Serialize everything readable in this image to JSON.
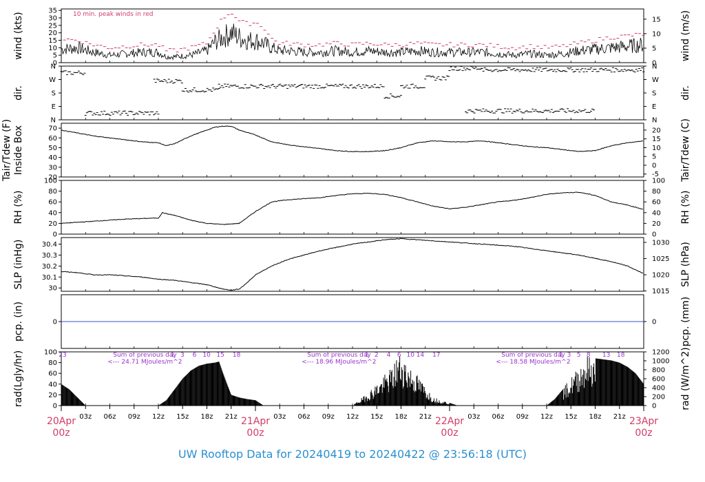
{
  "title": "UW Rooftop Data for 20240419  to  20240422 @ 23:56:18  (UTC)",
  "colors": {
    "axis": "#000000",
    "data": "#000000",
    "peak": "#d33a66",
    "precip": "#3355cc",
    "solar_label": "#9933cc",
    "date_label": "#d33a66",
    "title": "#2a8fd0"
  },
  "time_axis": {
    "range_hours": [
      0,
      72
    ],
    "tick_labels": [
      "03z",
      "06z",
      "09z",
      "12z",
      "15z",
      "18z",
      "21z",
      "03z",
      "06z",
      "09z",
      "12z",
      "15z",
      "18z",
      "21z",
      "03z",
      "06z",
      "09z",
      "12z",
      "15z",
      "18z",
      "21z"
    ],
    "tick_hours": [
      3,
      6,
      9,
      12,
      15,
      18,
      21,
      27,
      30,
      33,
      36,
      39,
      42,
      45,
      51,
      54,
      57,
      60,
      63,
      66,
      69
    ],
    "date_labels": [
      {
        "hour": 0,
        "date": "20Apr",
        "time": "00z"
      },
      {
        "hour": 24,
        "date": "21Apr",
        "time": "00z"
      },
      {
        "hour": 48,
        "date": "22Apr",
        "time": "00z"
      },
      {
        "hour": 72,
        "date": "23Apr",
        "time": "00z"
      }
    ]
  },
  "chart_data": [
    {
      "type": "line",
      "id": "wind",
      "ylabel_left": "wind (kts)",
      "ylabel_right": "wind (m/s)",
      "ylim": [
        0,
        36
      ],
      "left_ticks": [
        0,
        5,
        10,
        15,
        20,
        25,
        30,
        35
      ],
      "right_ticks": [
        0,
        5,
        10,
        15
      ],
      "right_scale": 0.5144,
      "annotation": "10 min. peak winds in red",
      "x": [
        0,
        2,
        4,
        6,
        8,
        10,
        12,
        13,
        14,
        16,
        18,
        19,
        20,
        21,
        22,
        23,
        24,
        25,
        26,
        27,
        28,
        30,
        32,
        34,
        36,
        38,
        40,
        42,
        44,
        46,
        48,
        50,
        52,
        54,
        56,
        58,
        60,
        62,
        64,
        66,
        68,
        70,
        72
      ],
      "values": [
        9,
        10,
        7,
        5,
        6,
        7,
        7,
        4,
        4,
        5,
        8,
        14,
        17,
        20,
        17,
        15,
        15,
        13,
        10,
        8,
        8,
        7,
        7,
        8,
        7,
        8,
        7,
        7,
        8,
        7,
        7,
        7,
        7,
        6,
        5,
        6,
        5,
        6,
        8,
        9,
        10,
        11,
        12
      ],
      "peak_values": [
        16,
        15,
        12,
        10,
        11,
        12,
        12,
        8,
        8,
        10,
        13,
        22,
        30,
        34,
        28,
        26,
        27,
        24,
        16,
        13,
        13,
        12,
        12,
        13,
        12,
        13,
        12,
        12,
        13,
        12,
        12,
        12,
        12,
        11,
        10,
        11,
        10,
        11,
        13,
        15,
        17,
        18,
        19
      ]
    },
    {
      "type": "scatter",
      "id": "dir",
      "ylabel_left": "dir.",
      "ylabel_right": "dir.",
      "y_tick_labels": [
        "N",
        "E",
        "S",
        "W",
        "N"
      ],
      "y_tick_degrees": [
        0,
        90,
        180,
        270,
        360
      ],
      "ylim": [
        0,
        360
      ],
      "segments": [
        {
          "x": [
            0,
            3
          ],
          "deg": 315
        },
        {
          "x": [
            3,
            12
          ],
          "deg": 45
        },
        {
          "x": [
            11.5,
            15
          ],
          "deg": 260
        },
        {
          "x": [
            15,
            19.5
          ],
          "deg": 200
        },
        {
          "x": [
            19.5,
            40
          ],
          "deg": 225
        },
        {
          "x": [
            40,
            42
          ],
          "deg": 160
        },
        {
          "x": [
            42,
            45
          ],
          "deg": 225
        },
        {
          "x": [
            45,
            48
          ],
          "deg": 280
        },
        {
          "x": [
            48,
            52
          ],
          "deg": 345
        },
        {
          "x": [
            50,
            66
          ],
          "deg": 60
        },
        {
          "x": [
            52,
            72
          ],
          "deg": 335
        }
      ]
    },
    {
      "type": "line",
      "id": "temp",
      "ylabel_left": "Tair/Tdew (F)",
      "ylabel_left2": "Inside Box",
      "ylabel_right": "Tair/Tdew (C)",
      "ylim": [
        20,
        75
      ],
      "left_ticks": [
        20,
        30,
        40,
        50,
        60,
        70
      ],
      "right_ticks": [
        -5,
        0,
        5,
        10,
        15,
        20
      ],
      "x": [
        0,
        2,
        4,
        6,
        8,
        10,
        12,
        13,
        14,
        16,
        18,
        19,
        20,
        21,
        22,
        24,
        26,
        28,
        30,
        32,
        34,
        36,
        38,
        40,
        42,
        44,
        46,
        48,
        50,
        52,
        54,
        56,
        58,
        60,
        62,
        64,
        66,
        68,
        70,
        72
      ],
      "values": [
        68,
        65,
        62,
        60,
        58,
        56,
        55,
        52,
        54,
        62,
        68,
        71,
        72,
        72,
        68,
        63,
        56,
        53,
        51,
        49,
        47,
        46,
        46,
        47,
        50,
        55,
        57,
        56,
        56,
        57,
        55,
        53,
        51,
        50,
        48,
        46,
        47,
        52,
        55,
        57
      ]
    },
    {
      "type": "line",
      "id": "rh",
      "ylabel_left": "RH (%)",
      "ylabel_right": "RH (%)",
      "ylim": [
        0,
        100
      ],
      "left_ticks": [
        0,
        20,
        40,
        60,
        80,
        100
      ],
      "right_ticks": [
        0,
        20,
        40,
        60,
        80,
        100
      ],
      "x": [
        0,
        2,
        4,
        6,
        8,
        10,
        12,
        12.5,
        13,
        14,
        16,
        18,
        20,
        22,
        24,
        26,
        28,
        30,
        32,
        34,
        36,
        38,
        40,
        42,
        44,
        46,
        48,
        50,
        52,
        54,
        56,
        58,
        60,
        62,
        64,
        66,
        68,
        70,
        72
      ],
      "values": [
        20,
        22,
        24,
        26,
        28,
        29,
        30,
        40,
        38,
        35,
        26,
        20,
        18,
        20,
        42,
        60,
        64,
        66,
        68,
        72,
        75,
        76,
        74,
        68,
        60,
        52,
        47,
        50,
        55,
        60,
        63,
        68,
        74,
        77,
        78,
        72,
        60,
        54,
        46
      ]
    },
    {
      "type": "line",
      "id": "slp",
      "ylabel_left": "SLP (inHg)",
      "ylabel_right": "SLP (hPa)",
      "ylim": [
        29.97,
        30.46
      ],
      "left_ticks": [
        30.0,
        30.1,
        30.2,
        30.3,
        30.4
      ],
      "right_ticks": [
        1015,
        1020,
        1025,
        1030
      ],
      "x": [
        0,
        2,
        4,
        6,
        8,
        10,
        12,
        14,
        16,
        18,
        20,
        21,
        22,
        23,
        24,
        26,
        28,
        30,
        32,
        34,
        36,
        38,
        40,
        42,
        44,
        46,
        48,
        50,
        52,
        54,
        56,
        58,
        60,
        62,
        64,
        66,
        68,
        70,
        72
      ],
      "values": [
        30.15,
        30.14,
        30.12,
        30.12,
        30.11,
        30.1,
        30.08,
        30.07,
        30.05,
        30.03,
        29.99,
        29.98,
        29.99,
        30.05,
        30.12,
        30.2,
        30.26,
        30.3,
        30.34,
        30.37,
        30.4,
        30.42,
        30.44,
        30.45,
        30.44,
        30.43,
        30.42,
        30.41,
        30.4,
        30.39,
        30.38,
        30.36,
        30.34,
        30.32,
        30.3,
        30.27,
        30.24,
        30.2,
        30.13
      ]
    },
    {
      "type": "line",
      "id": "pcp",
      "ylabel_left": "pcp. (in)",
      "ylabel_right": "pcp. (mm)",
      "ylim": [
        -1,
        1
      ],
      "left_ticks": [
        0
      ],
      "right_ticks": [
        0
      ],
      "x": [
        0,
        72
      ],
      "values": [
        0,
        0
      ]
    },
    {
      "type": "area",
      "id": "rad",
      "ylabel_left": "rad(Lgly/hr)",
      "ylabel_right": "rad (W/m^2)",
      "ylim": [
        0,
        100
      ],
      "left_ticks": [
        0,
        20,
        40,
        60,
        80,
        100
      ],
      "right_ticks": [
        0,
        200,
        400,
        600,
        800,
        1000,
        1200
      ],
      "x": [
        0,
        1,
        2,
        3,
        12,
        13,
        14,
        15,
        16,
        17,
        18,
        19,
        19.5,
        20,
        20.5,
        21,
        22,
        23,
        24,
        25,
        36,
        37,
        38,
        39,
        40,
        41,
        41.5,
        42,
        42.5,
        43,
        44,
        45,
        46,
        48,
        49,
        60,
        61,
        62,
        63,
        64,
        64.5,
        65,
        66,
        67,
        68,
        69,
        70,
        71,
        72
      ],
      "values": [
        40,
        30,
        15,
        0,
        0,
        10,
        30,
        50,
        65,
        74,
        78,
        80,
        82,
        60,
        40,
        20,
        15,
        12,
        10,
        0,
        0,
        12,
        25,
        40,
        55,
        70,
        90,
        95,
        85,
        72,
        55,
        35,
        15,
        5,
        0,
        0,
        12,
        30,
        50,
        70,
        85,
        90,
        88,
        86,
        84,
        80,
        72,
        60,
        40
      ],
      "daily_sums": [
        {
          "hour": 3,
          "line1": "Sum of previous day",
          "line2": "<--- 24.71 MJoules/m^2"
        },
        {
          "hour": 27,
          "line1": "Sum of previous day",
          "line2": "<--- 18.96 MJoules/m^2"
        },
        {
          "hour": 51,
          "line1": "Sum of previous day",
          "line2": "<--- 18.58 MJoules/m^2"
        }
      ],
      "hour_labels": [
        {
          "hour": 0,
          "text": "23"
        },
        {
          "hour": 13.6,
          "text": "1"
        },
        {
          "hour": 14.8,
          "text": "3"
        },
        {
          "hour": 16.3,
          "text": "6"
        },
        {
          "hour": 17.8,
          "text": "10"
        },
        {
          "hour": 19.5,
          "text": "15"
        },
        {
          "hour": 21.5,
          "text": "18"
        },
        {
          "hour": 37.6,
          "text": "1"
        },
        {
          "hour": 38.8,
          "text": "2"
        },
        {
          "hour": 40.3,
          "text": "4"
        },
        {
          "hour": 41.6,
          "text": "6"
        },
        {
          "hour": 43.0,
          "text": "10"
        },
        {
          "hour": 44.2,
          "text": "14"
        },
        {
          "hour": 46.2,
          "text": "17"
        },
        {
          "hour": 61.6,
          "text": "1"
        },
        {
          "hour": 62.6,
          "text": "3"
        },
        {
          "hour": 63.8,
          "text": "5"
        },
        {
          "hour": 65.0,
          "text": "8"
        },
        {
          "hour": 67.2,
          "text": "13"
        },
        {
          "hour": 69.0,
          "text": "18"
        }
      ]
    }
  ]
}
